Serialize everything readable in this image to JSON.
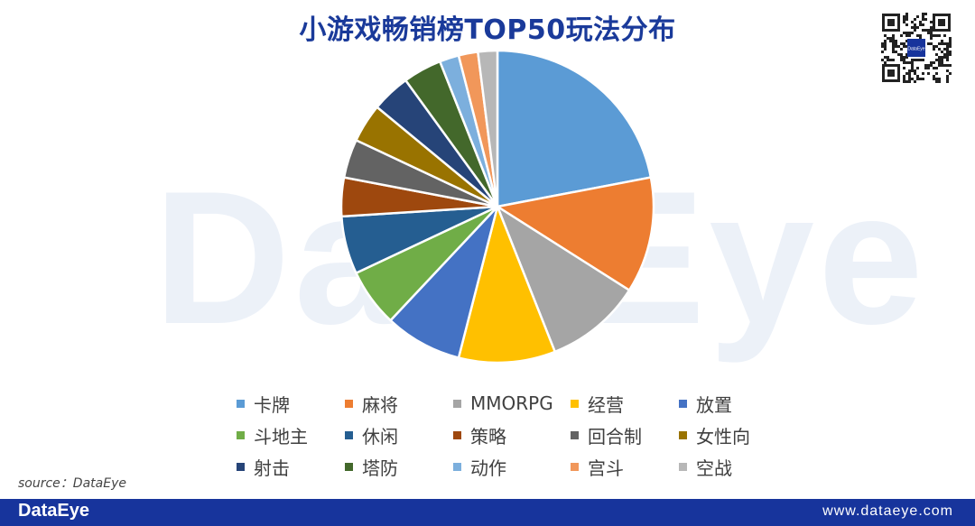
{
  "header": {
    "title": "小游戏畅销榜TOP50玩法分布"
  },
  "watermark": {
    "text": "DataEye"
  },
  "qr": {
    "icon": "qr-code-icon",
    "logo_text": "DataEye"
  },
  "source": {
    "text": "source：DataEye"
  },
  "footer": {
    "logo": "DataEye",
    "url": "www.dataeye.com",
    "color": "#17349c"
  },
  "chart_data": {
    "type": "pie",
    "title": "小游戏畅销榜TOP50玩法分布",
    "legend_position": "bottom",
    "start_angle_deg": 0,
    "direction": "clockwise",
    "categories": [
      "卡牌",
      "麻将",
      "MMORPG",
      "经营",
      "放置",
      "斗地主",
      "休闲",
      "策略",
      "回合制",
      "女性向",
      "射击",
      "塔防",
      "动作",
      "宫斗",
      "空战"
    ],
    "values": [
      22,
      12,
      10,
      10,
      8,
      6,
      6,
      4,
      4,
      4,
      4,
      4,
      2,
      2,
      2
    ],
    "colors": [
      "#5b9bd5",
      "#ed7d31",
      "#a5a5a5",
      "#ffc000",
      "#4472c4",
      "#70ad47",
      "#255e91",
      "#9e480e",
      "#636363",
      "#997300",
      "#264478",
      "#43682b",
      "#7cafdd",
      "#f1975a",
      "#b7b7b7"
    ]
  }
}
